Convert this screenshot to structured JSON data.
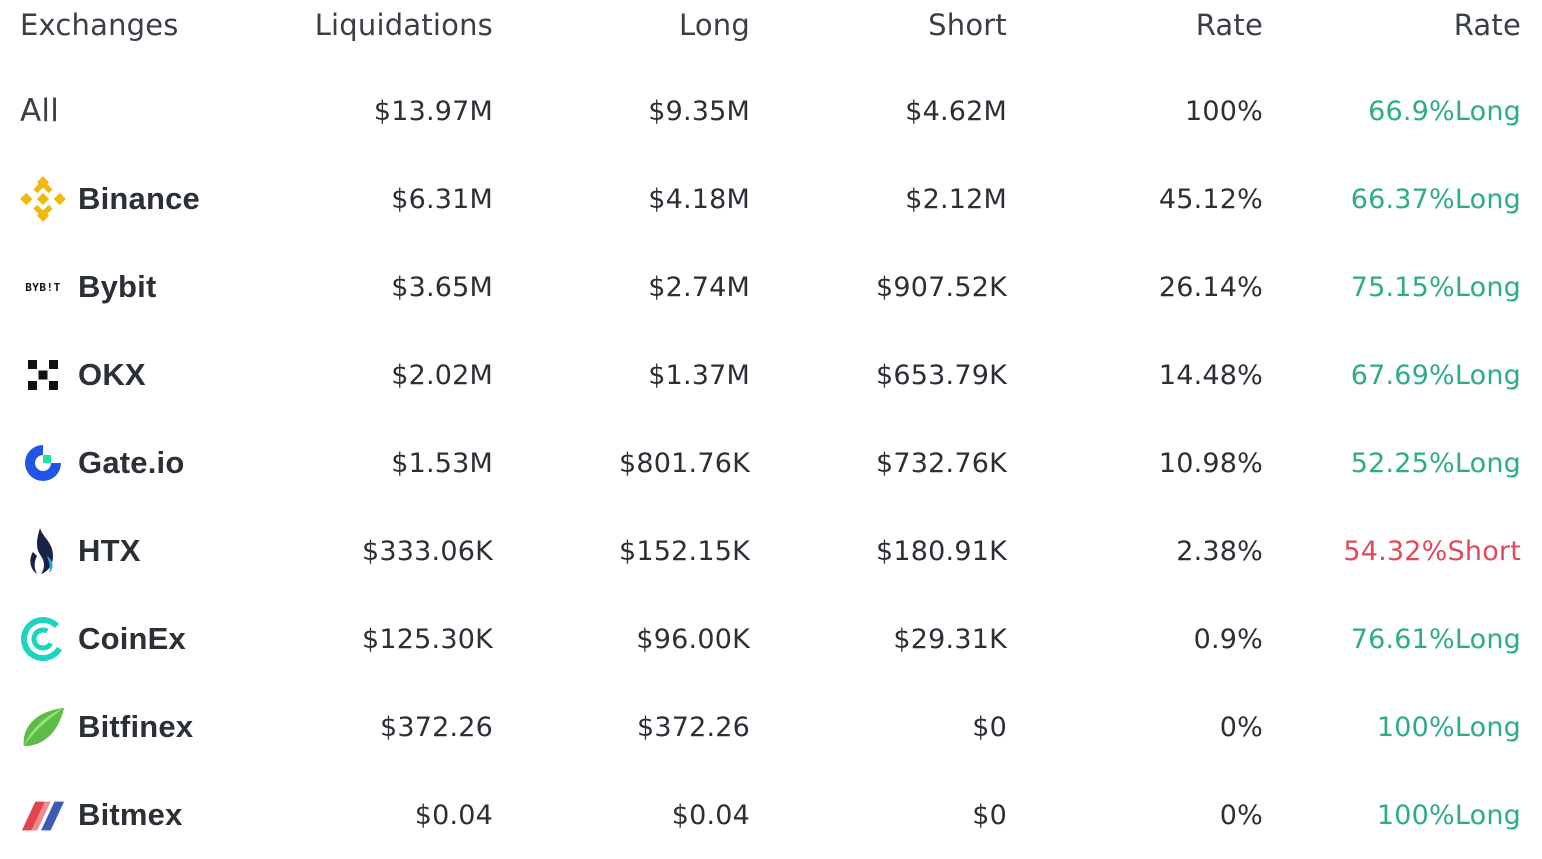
{
  "header": {
    "exchanges": "Exchanges",
    "liquidations": "Liquidations",
    "long": "Long",
    "short": "Short",
    "rate": "Rate",
    "rate2": "Rate"
  },
  "all": {
    "name": "All",
    "liquidations": "$13.97M",
    "long": "$9.35M",
    "short": "$4.62M",
    "rate": "100%",
    "ratio": "66.9%Long"
  },
  "rows": [
    {
      "name": "Binance",
      "logo": "binance-logo",
      "liquidations": "$6.31M",
      "long": "$4.18M",
      "short": "$2.12M",
      "rate": "45.12%",
      "ratio": "66.37%Long",
      "ratio_color": "#2eab8a"
    },
    {
      "name": "Bybit",
      "logo": "bybit-logo",
      "logo_text": "BYB!T",
      "liquidations": "$3.65M",
      "long": "$2.74M",
      "short": "$907.52K",
      "rate": "26.14%",
      "ratio": "75.15%Long",
      "ratio_color": "#2eab8a"
    },
    {
      "name": "OKX",
      "logo": "okx-logo",
      "liquidations": "$2.02M",
      "long": "$1.37M",
      "short": "$653.79K",
      "rate": "14.48%",
      "ratio": "67.69%Long",
      "ratio_color": "#2eab8a"
    },
    {
      "name": "Gate.io",
      "logo": "gateio-logo",
      "liquidations": "$1.53M",
      "long": "$801.76K",
      "short": "$732.76K",
      "rate": "10.98%",
      "ratio": "52.25%Long",
      "ratio_color": "#2eab8a"
    },
    {
      "name": "HTX",
      "logo": "htx-logo",
      "liquidations": "$333.06K",
      "long": "$152.15K",
      "short": "$180.91K",
      "rate": "2.38%",
      "ratio": "54.32%Short",
      "ratio_color": "#e04a58"
    },
    {
      "name": "CoinEx",
      "logo": "coinex-logo",
      "liquidations": "$125.30K",
      "long": "$96.00K",
      "short": "$29.31K",
      "rate": "0.9%",
      "ratio": "76.61%Long",
      "ratio_color": "#2eab8a"
    },
    {
      "name": "Bitfinex",
      "logo": "bitfinex-logo",
      "liquidations": "$372.26",
      "long": "$372.26",
      "short": "$0",
      "rate": "0%",
      "ratio": "100%Long",
      "ratio_color": "#2eab8a"
    },
    {
      "name": "Bitmex",
      "logo": "bitmex-logo",
      "liquidations": "$0.04",
      "long": "$0.04",
      "short": "$0",
      "rate": "0%",
      "ratio": "100%Long",
      "ratio_color": "#2eab8a"
    }
  ]
}
